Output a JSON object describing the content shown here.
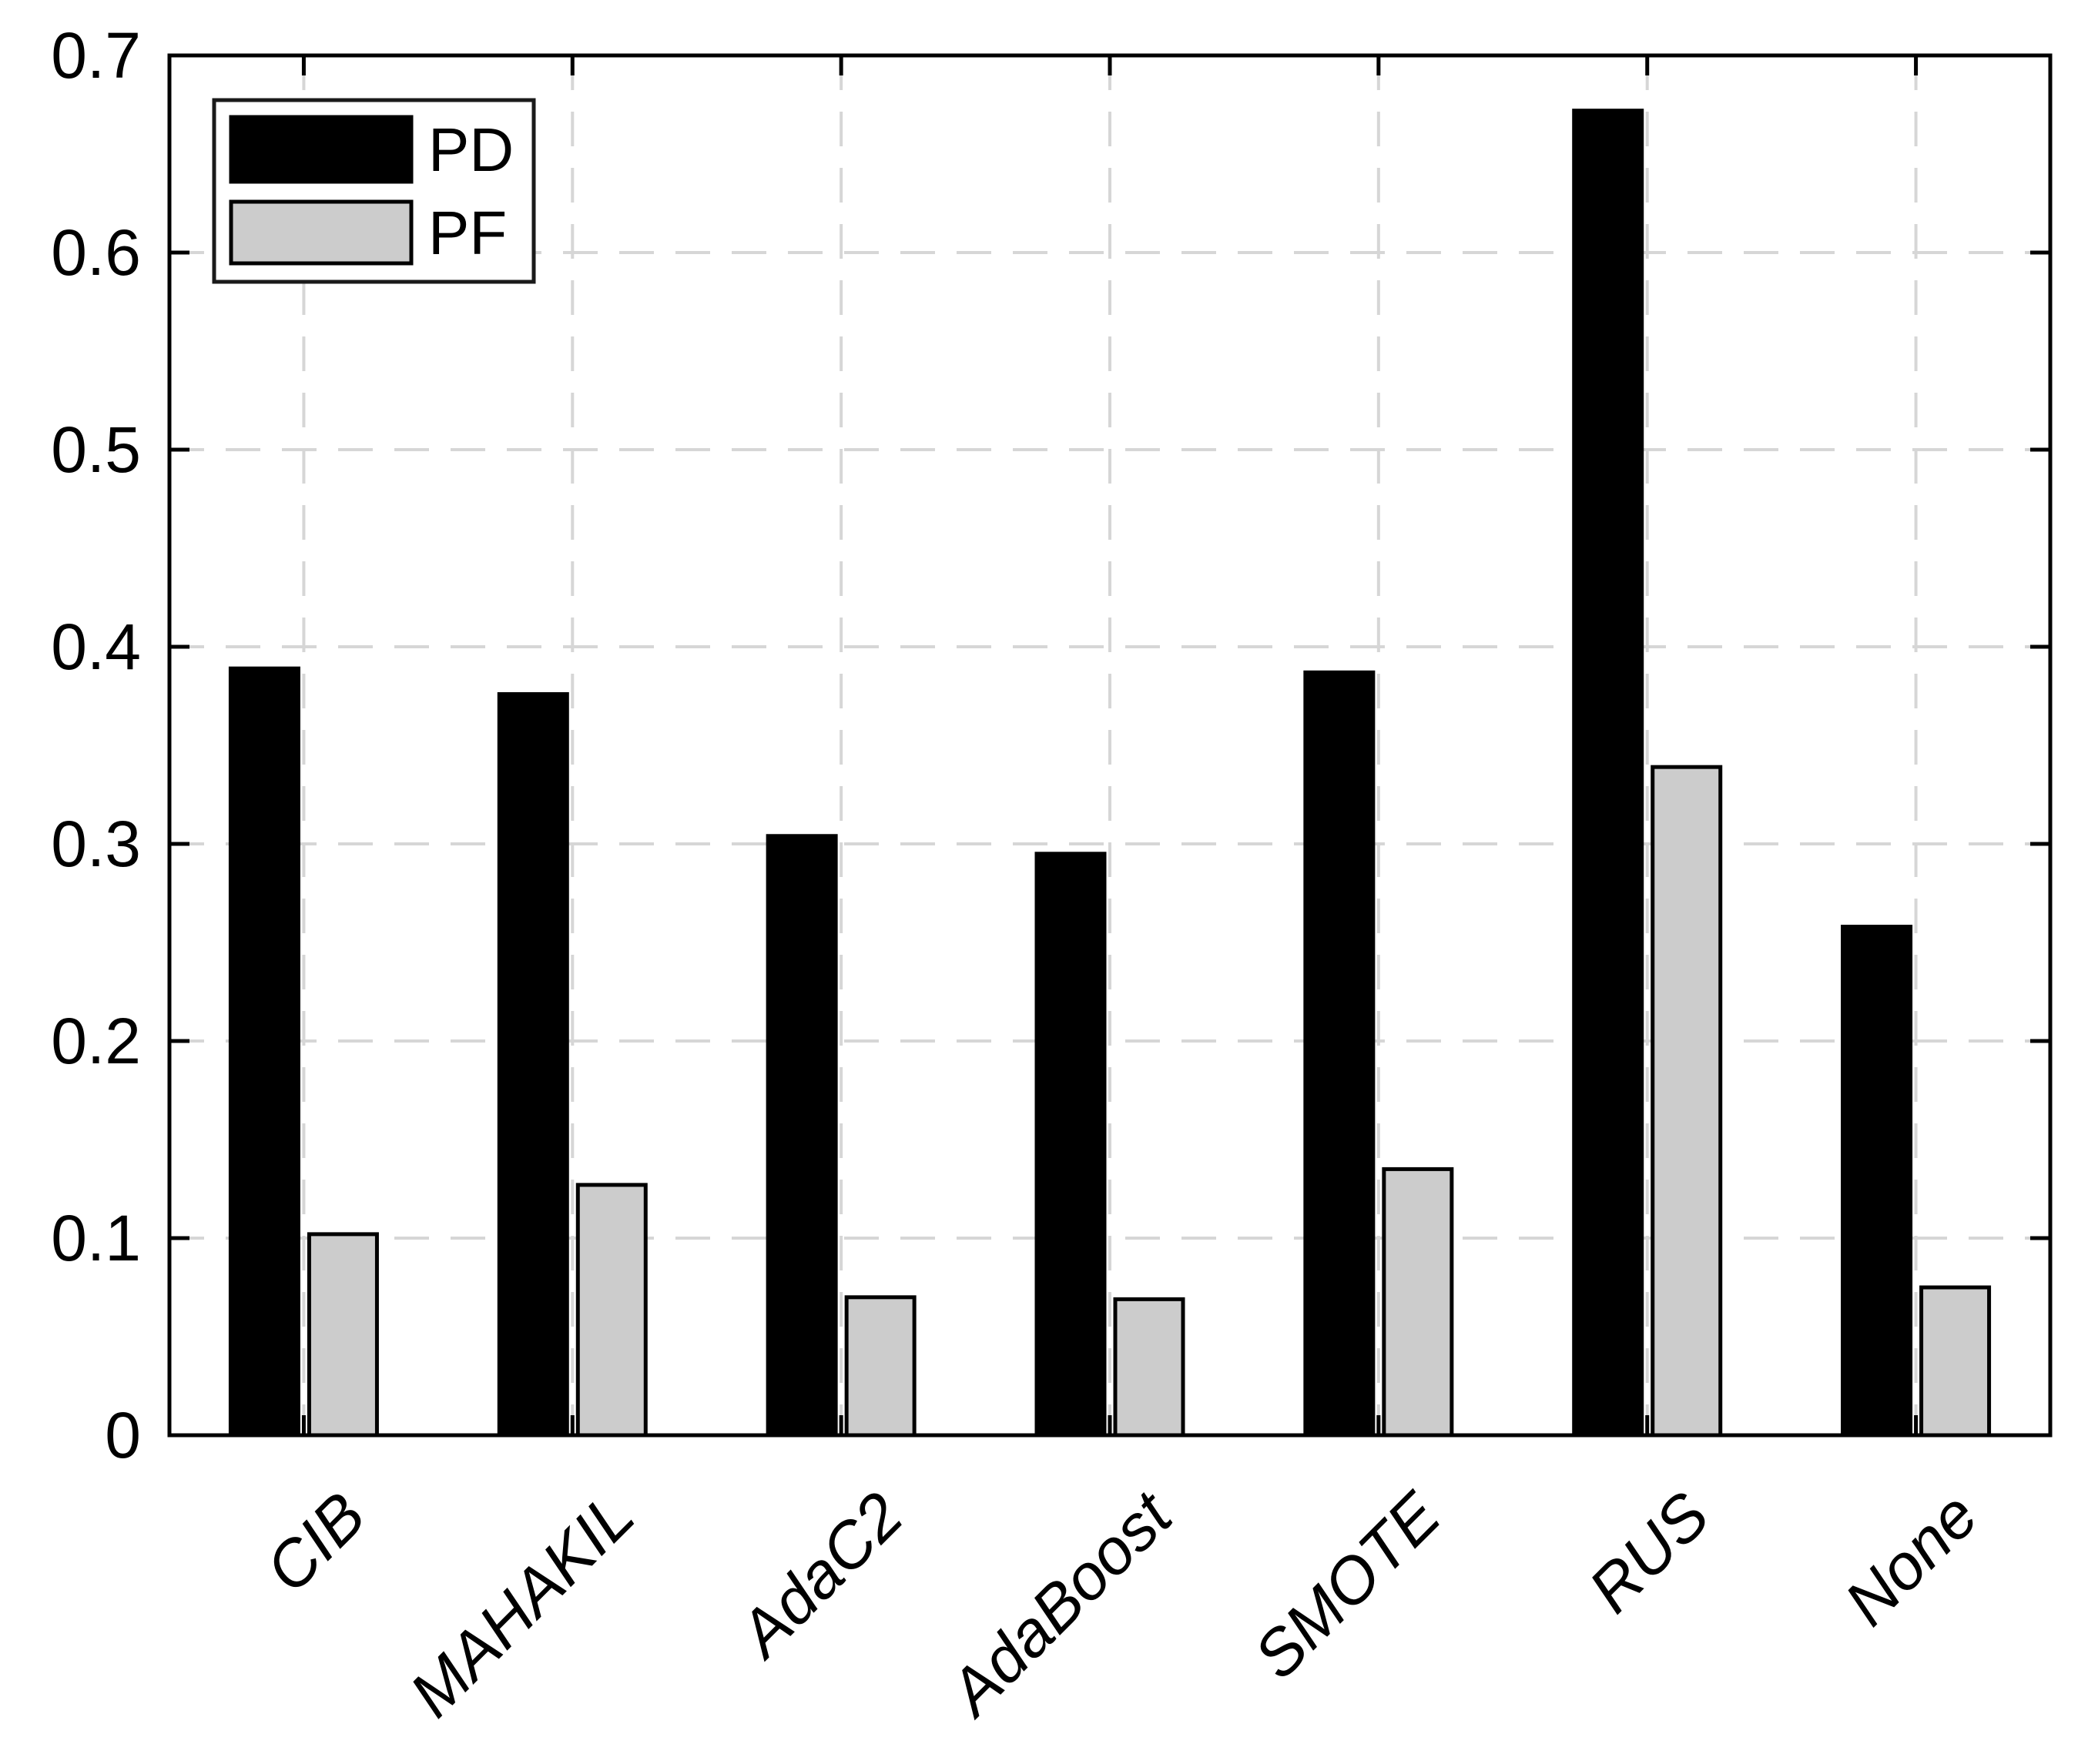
{
  "chart_data": {
    "type": "bar",
    "title": "",
    "xlabel": "",
    "ylabel": "",
    "categories": [
      "CIB",
      "MAHAKIL",
      "AdaC2",
      "AdaBoost",
      "SMOTE",
      "RUS",
      "None"
    ],
    "series": [
      {
        "name": "PD",
        "color": "#000000",
        "values": [
          0.389,
          0.376,
          0.304,
          0.295,
          0.387,
          0.672,
          0.258
        ]
      },
      {
        "name": "PF",
        "color": "#CCCCCC",
        "values": [
          0.102,
          0.127,
          0.07,
          0.069,
          0.135,
          0.339,
          0.075
        ]
      }
    ],
    "ylim": [
      0,
      0.7
    ],
    "ytick_values": [
      0,
      0.1,
      0.2,
      0.3,
      0.4,
      0.5,
      0.6,
      0.7
    ],
    "ytick_labels": [
      "0",
      "0.1",
      "0.2",
      "0.3",
      "0.4",
      "0.5",
      "0.6",
      "0.7"
    ],
    "grid": true,
    "grid_style": "dashed",
    "legend_position": "northwest",
    "legend_entries": [
      "PD",
      "PF"
    ]
  },
  "styles": {
    "background_color": "#FFFFFF",
    "axis_color": "#000000",
    "text_color": "#000000",
    "grid_color": "#D6D6D6",
    "bar_border_color": "#000000",
    "pd_fill_color": "#000000",
    "pf_fill_color": "#CCCCCC",
    "legend_border_color": "#1A1A1A",
    "legend_fill_color": "#FFFFFF"
  }
}
